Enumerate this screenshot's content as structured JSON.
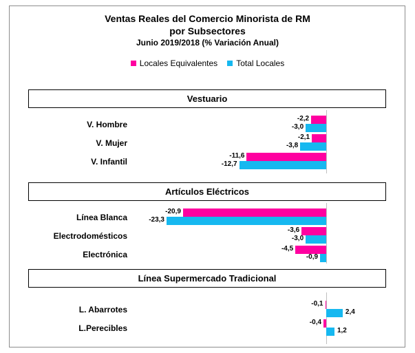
{
  "chart_data": {
    "type": "bar",
    "orientation": "horizontal",
    "title": "Ventas Reales del Comercio Minorista de RM",
    "subtitle": "por Subsectores",
    "subtitle2": "Junio 2019/2018 (% Variación Anual)",
    "legend": {
      "placement": "top-center"
    },
    "series": [
      {
        "name": "Locales Equivalentes",
        "color": "#ff00a0"
      },
      {
        "name": "Total Locales",
        "color": "#16b8f0"
      }
    ],
    "groups": [
      {
        "name": "Vestuario",
        "categories": [
          "V. Hombre",
          "V. Mujer",
          "V. Infantil"
        ],
        "locales_equivalentes": [
          -2.2,
          -2.1,
          -11.6
        ],
        "total_locales": [
          -3.0,
          -3.8,
          -12.7
        ],
        "labels_equivalentes": [
          "-2,2",
          "-2,1",
          "-11,6"
        ],
        "labels_total": [
          "-3,0",
          "-3,8",
          "-12,7"
        ]
      },
      {
        "name": "Artículos Eléctricos",
        "categories": [
          "Línea Blanca",
          "Electrodomésticos",
          "Electrónica"
        ],
        "locales_equivalentes": [
          -20.9,
          -3.6,
          -4.5
        ],
        "total_locales": [
          -23.3,
          -3.0,
          -0.9
        ],
        "labels_equivalentes": [
          "-20,9",
          "-3,6",
          "-4,5"
        ],
        "labels_total": [
          "-23,3",
          "-3,0",
          "-0,9"
        ]
      },
      {
        "name": "Línea Supermercado Tradicional",
        "categories": [
          "L. Abarrotes",
          "L.Perecibles"
        ],
        "locales_equivalentes": [
          -0.1,
          -0.4
        ],
        "total_locales": [
          2.4,
          1.2
        ],
        "labels_equivalentes": [
          "-0,1",
          "-0,4"
        ],
        "labels_total": [
          "2,4",
          "1,2"
        ]
      }
    ],
    "xlim": [
      -23.3,
      2.4
    ],
    "grid": false
  }
}
